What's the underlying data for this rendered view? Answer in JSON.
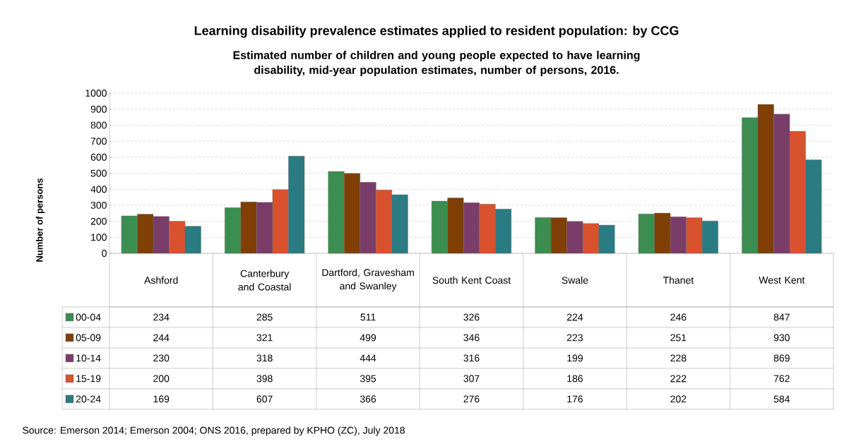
{
  "chart_data": {
    "type": "bar",
    "title": "Learning disability prevalence estimates applied to resident population: by CCG",
    "subtitle": "Estimated number of children and young people expected to have learning disability, mid-year population estimates, number of persons, 2016.",
    "ylabel": "Number of persons",
    "categories": [
      "Ashford",
      "Canterbury and Coastal",
      "Dartford, Gravesham and Swanley",
      "South Kent Coast",
      "Swale",
      "Thanet",
      "West Kent"
    ],
    "series": [
      {
        "name": "00-04",
        "color": "#3b8e4f",
        "values": [
          234,
          285,
          511,
          326,
          224,
          246,
          847
        ]
      },
      {
        "name": "05-09",
        "color": "#7f3f05",
        "values": [
          244,
          321,
          499,
          346,
          223,
          251,
          930
        ]
      },
      {
        "name": "10-14",
        "color": "#7a3d6a",
        "values": [
          230,
          318,
          444,
          316,
          199,
          228,
          869
        ]
      },
      {
        "name": "15-19",
        "color": "#d8522e",
        "values": [
          200,
          398,
          395,
          307,
          186,
          222,
          762
        ]
      },
      {
        "name": "20-24",
        "color": "#2b7b82",
        "values": [
          169,
          607,
          366,
          276,
          176,
          202,
          584
        ]
      }
    ],
    "ylim": [
      0,
      1000
    ],
    "yticks": [
      0,
      100,
      200,
      300,
      400,
      500,
      600,
      700,
      800,
      900,
      1000
    ],
    "grid": "y",
    "legend": "bottom",
    "data_labels": true,
    "tick_labels": "y",
    "annotations": [
      "Source: Emerson 2014; Emerson 2004; ONS 2016, prepared by KPHO (ZC), July 2018"
    ]
  }
}
